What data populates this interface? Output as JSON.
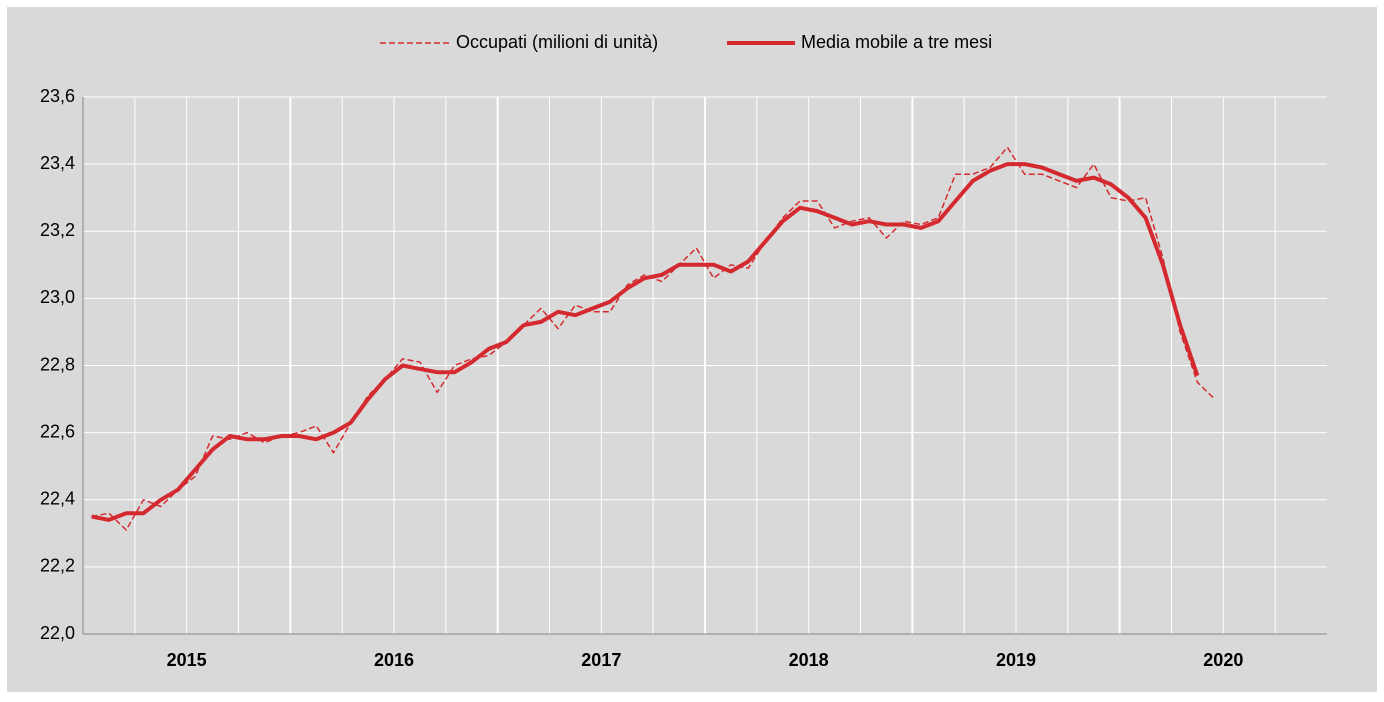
{
  "chart_data": {
    "type": "line",
    "categories": [
      null,
      null,
      null,
      null,
      null,
      "2015",
      null,
      null,
      null,
      null,
      null,
      null,
      null,
      null,
      null,
      null,
      null,
      "2016",
      null,
      null,
      null,
      null,
      null,
      null,
      null,
      null,
      null,
      null,
      null,
      "2017",
      null,
      null,
      null,
      null,
      null,
      null,
      null,
      null,
      null,
      null,
      null,
      "2018",
      null,
      null,
      null,
      null,
      null,
      null,
      null,
      null,
      null,
      null,
      null,
      "2019",
      null,
      null,
      null,
      null,
      null,
      null,
      null,
      null,
      null,
      null,
      null,
      "2020",
      null,
      null,
      null,
      null,
      null,
      null
    ],
    "series": [
      {
        "name": "Occupati (milioni di unità)",
        "color": "#d42a2f",
        "line_style": "dashed",
        "values": [
          22.35,
          22.36,
          22.31,
          22.4,
          22.38,
          22.43,
          22.47,
          22.59,
          22.58,
          22.6,
          22.57,
          22.59,
          22.6,
          22.62,
          22.54,
          22.63,
          22.71,
          22.76,
          22.82,
          22.81,
          22.72,
          22.8,
          22.82,
          22.83,
          22.87,
          22.92,
          22.97,
          22.91,
          22.98,
          22.96,
          22.96,
          23.04,
          23.07,
          23.05,
          23.1,
          23.15,
          23.06,
          23.1,
          23.09,
          23.17,
          23.24,
          23.29,
          23.29,
          23.21,
          23.23,
          23.24,
          23.18,
          23.23,
          23.22,
          23.24,
          23.37,
          23.37,
          23.39,
          23.45,
          23.37,
          23.37,
          23.35,
          23.33,
          23.4,
          23.3,
          23.29,
          23.3,
          23.12,
          22.9,
          22.75,
          22.7,
          null,
          null,
          null,
          null,
          null,
          null
        ]
      },
      {
        "name": "Media mobile a tre mesi",
        "color": "#d42a2f",
        "line_style": "solid",
        "values": [
          22.35,
          22.34,
          22.36,
          22.36,
          22.4,
          22.43,
          22.49,
          22.55,
          22.59,
          22.58,
          22.58,
          22.59,
          22.59,
          22.58,
          22.6,
          22.63,
          22.7,
          22.76,
          22.8,
          22.79,
          22.78,
          22.78,
          22.81,
          22.85,
          22.87,
          22.92,
          22.93,
          22.96,
          22.95,
          22.97,
          22.99,
          23.03,
          23.06,
          23.07,
          23.1,
          23.1,
          23.1,
          23.08,
          23.11,
          23.17,
          23.23,
          23.27,
          23.26,
          23.24,
          23.22,
          23.23,
          23.22,
          23.22,
          23.21,
          23.23,
          23.29,
          23.35,
          23.38,
          23.4,
          23.4,
          23.39,
          23.37,
          23.35,
          23.36,
          23.34,
          23.3,
          23.24,
          23.1,
          22.92,
          22.77,
          null,
          null,
          null,
          null,
          null,
          null,
          null
        ]
      }
    ],
    "ylim": [
      22.0,
      23.6
    ],
    "yticks": [
      {
        "value": 22.0,
        "label": "22,0"
      },
      {
        "value": 22.2,
        "label": "22,2"
      },
      {
        "value": 22.4,
        "label": "22,4"
      },
      {
        "value": 22.6,
        "label": "22,6"
      },
      {
        "value": 22.8,
        "label": "22,8"
      },
      {
        "value": 23.0,
        "label": "23,0"
      },
      {
        "value": 23.2,
        "label": "23,2"
      },
      {
        "value": 23.4,
        "label": "23,4"
      },
      {
        "value": 23.6,
        "label": "23,6"
      }
    ],
    "grid": true,
    "legend": "top"
  }
}
